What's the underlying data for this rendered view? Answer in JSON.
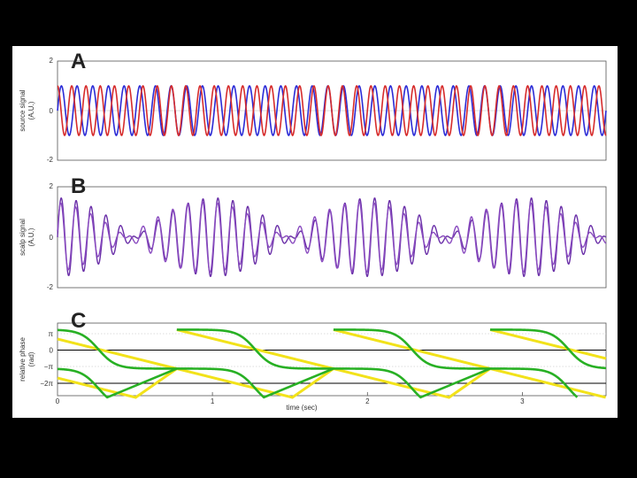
{
  "chart_data": [
    {
      "type": "line",
      "panel_letter": "A",
      "ylabel_line1": "source signal",
      "ylabel_line2": "(A.U.)",
      "ylim": [
        -2,
        2
      ],
      "yticks": [
        2,
        0,
        -2
      ],
      "ytick_labels": [
        "2",
        "0",
        "-2"
      ],
      "xlim": [
        0,
        3.5
      ],
      "series": [
        {
          "color": "#2b2bd6",
          "frequency_hz": 10,
          "amplitude": 1,
          "phase_rad": 0
        },
        {
          "color": "#d62b2b",
          "frequency_hz": 11,
          "amplitude": 1,
          "phase_rad": 1.5708
        }
      ]
    },
    {
      "type": "line",
      "panel_letter": "B",
      "ylabel_line1": "scalp signal",
      "ylabel_line2": "(A.U.)",
      "ylim": [
        -2,
        2
      ],
      "yticks": [
        2,
        0,
        -2
      ],
      "ytick_labels": [
        "2",
        "0",
        "-2"
      ],
      "xlim": [
        0,
        3.5
      ],
      "series": [
        {
          "color": "#6a2fa8",
          "components_hz": [
            10,
            11
          ],
          "amplitude": 0.78
        },
        {
          "color": "#8a4cc0",
          "components_hz": [
            10,
            11
          ],
          "amplitude": 0.7
        }
      ]
    },
    {
      "type": "line",
      "panel_letter": "C",
      "ylabel_line1": "relative phase",
      "ylabel_line2": "(rad)",
      "ylim": [
        -7.5,
        4.2
      ],
      "yticks": [
        3.1416,
        0,
        -3.1416,
        -6.2832
      ],
      "ytick_labels": [
        "π",
        "0",
        "−π",
        "−2π"
      ],
      "xlim": [
        0,
        3.5
      ],
      "xticks": [
        0,
        1,
        2,
        3
      ],
      "xtick_labels": [
        "0",
        "1",
        "2",
        "3"
      ],
      "xlabel": "time (sec)",
      "series": [
        {
          "color": "#f2e21a",
          "shape": "linear"
        },
        {
          "color": "#28b024",
          "shape": "sigmoidal"
        }
      ]
    }
  ],
  "colors": {
    "background": "#000000",
    "slide": "#ffffff",
    "axis": "#555555",
    "grid": "#bbbbbb",
    "black_line": "#000000"
  }
}
